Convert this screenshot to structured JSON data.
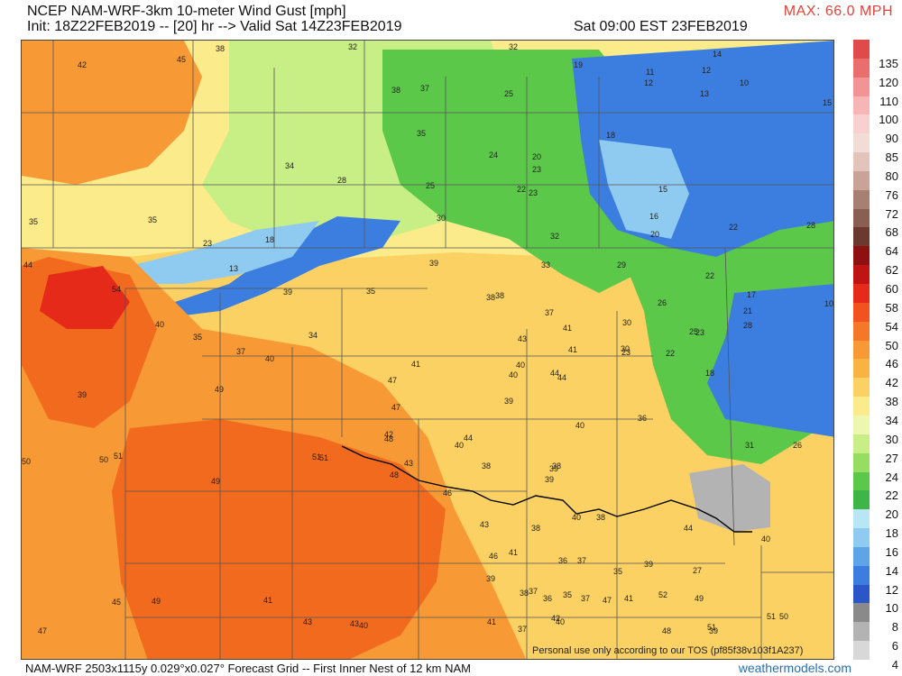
{
  "header": {
    "title_line1": "NCEP NAM-WRF-3km 10-meter Wind Gust [mph]",
    "title_line2": "Init: 18Z22FEB2019 -- [20] hr --> Valid Sat 14Z23FEB2019",
    "valid_local": "Sat 09:00 EST 23FEB2019",
    "max_label": "MAX: 66.0 MPH"
  },
  "footer": {
    "grid_info": "NAM-WRF 2503x1115y 0.029°x0.027° Forecast Grid -- First Inner Nest of 12 km NAM",
    "site": "weathermodels.com",
    "watermark": "Personal use only according to our TOS (pf85f38v103f1A237)"
  },
  "legend": [
    {
      "label": "135",
      "color": "#e04a4a"
    },
    {
      "label": "120",
      "color": "#ea6e6e"
    },
    {
      "label": "110",
      "color": "#f29494"
    },
    {
      "label": "100",
      "color": "#f7b5b5"
    },
    {
      "label": "90",
      "color": "#f9d0d0"
    },
    {
      "label": "85",
      "color": "#f1ddd6"
    },
    {
      "label": "80",
      "color": "#e2c4bb"
    },
    {
      "label": "76",
      "color": "#c9a396"
    },
    {
      "label": "72",
      "color": "#a88072"
    },
    {
      "label": "68",
      "color": "#8a5e51"
    },
    {
      "label": "64",
      "color": "#6a3a2e"
    },
    {
      "label": "62",
      "color": "#8f1010"
    },
    {
      "label": "60",
      "color": "#c01414"
    },
    {
      "label": "58",
      "color": "#e52a1a"
    },
    {
      "label": "54",
      "color": "#f2531e"
    },
    {
      "label": "50",
      "color": "#f57828"
    },
    {
      "label": "46",
      "color": "#f79a35"
    },
    {
      "label": "42",
      "color": "#f9b343"
    },
    {
      "label": "38",
      "color": "#fbd163"
    },
    {
      "label": "34",
      "color": "#fbeb8a"
    },
    {
      "label": "30",
      "color": "#eef7b0"
    },
    {
      "label": "27",
      "color": "#c8ee86"
    },
    {
      "label": "24",
      "color": "#97dd61"
    },
    {
      "label": "22",
      "color": "#5cc84a"
    },
    {
      "label": "20",
      "color": "#3eb546"
    },
    {
      "label": "18",
      "color": "#b8e6f5"
    },
    {
      "label": "16",
      "color": "#8fcbf0"
    },
    {
      "label": "14",
      "color": "#5ea5e8"
    },
    {
      "label": "12",
      "color": "#3c7ee0"
    },
    {
      "label": "10",
      "color": "#2a56c8"
    },
    {
      "label": "8",
      "color": "#8a8a8a"
    },
    {
      "label": "6",
      "color": "#b3b3b3"
    },
    {
      "label": "4",
      "color": "#d8d8d8"
    }
  ],
  "map": {
    "colors": {
      "orange_dark": "#f26a1e",
      "orange": "#f79a35",
      "yellow": "#fbd163",
      "pale_yellow": "#fbeb8a",
      "light_green": "#c8ee86",
      "green": "#5cc84a",
      "blue": "#3c7ee0",
      "light_blue": "#8fcbf0",
      "gray": "#a8a8a8",
      "red": "#e52a1a",
      "border": "#555555",
      "river": "#000000"
    },
    "gust_labels": [
      "42",
      "45",
      "38",
      "32",
      "32",
      "38",
      "37",
      "35",
      "25",
      "19",
      "11",
      "12",
      "14",
      "12",
      "10",
      "13",
      "15",
      "18",
      "24",
      "20",
      "22",
      "23",
      "23",
      "34",
      "28",
      "25",
      "30",
      "15",
      "16",
      "20",
      "28",
      "35",
      "35",
      "23",
      "18",
      "13",
      "39",
      "33",
      "32",
      "29",
      "22",
      "22",
      "44",
      "54",
      "39",
      "35",
      "38",
      "38",
      "37",
      "30",
      "26",
      "23",
      "17",
      "21",
      "10",
      "40",
      "35",
      "34",
      "37",
      "40",
      "43",
      "41",
      "30",
      "25",
      "28",
      "39",
      "40",
      "41",
      "40",
      "44",
      "23",
      "22",
      "18",
      "49",
      "47",
      "41",
      "47",
      "44",
      "39",
      "36",
      "42",
      "40",
      "44",
      "40",
      "38",
      "48",
      "43",
      "39",
      "31",
      "26",
      "50",
      "50",
      "51",
      "51",
      "48",
      "46",
      "38",
      "38",
      "39",
      "40",
      "38",
      "44",
      "49",
      "51",
      "43",
      "46",
      "41",
      "36",
      "37",
      "35",
      "39",
      "27",
      "40",
      "47",
      "45",
      "49",
      "41",
      "39",
      "38",
      "37",
      "36",
      "35",
      "37",
      "41",
      "47",
      "52",
      "49",
      "48",
      "43",
      "43",
      "40",
      "41",
      "37",
      "42",
      "40",
      "39",
      "51",
      "51",
      "50"
    ]
  }
}
